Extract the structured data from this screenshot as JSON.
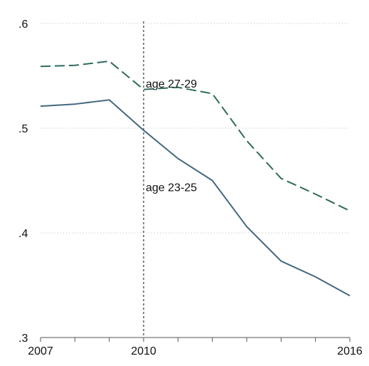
{
  "chart_data": {
    "type": "line",
    "title": "",
    "xlabel": "",
    "ylabel": "",
    "x": [
      2007,
      2008,
      2009,
      2010,
      2011,
      2012,
      2013,
      2014,
      2015,
      2016
    ],
    "xlim": [
      2007,
      2016
    ],
    "ylim": [
      0.3,
      0.6
    ],
    "x_tick_values": [
      2007,
      2010,
      2016
    ],
    "x_tick_labels": [
      "2007",
      "2010",
      "2016"
    ],
    "x_minor_ticks": [
      2008,
      2009,
      2011,
      2012,
      2013,
      2014,
      2015
    ],
    "y_tick_values": [
      0.3,
      0.4,
      0.5,
      0.6
    ],
    "y_tick_labels": [
      ".3",
      ".4",
      ".5",
      ".6"
    ],
    "grid": "horizontal dotted",
    "reference_line": {
      "x": 2010,
      "style": "dashed",
      "color": "#333333"
    },
    "series": [
      {
        "values": [
          0.559,
          0.56,
          0.564,
          0.537,
          0.539,
          0.533,
          0.488,
          0.452,
          0.437,
          0.421
        ],
        "color": "#2f6b5f",
        "dash": "dashed"
      },
      {
        "values": [
          0.521,
          0.523,
          0.527,
          0.498,
          0.471,
          0.45,
          0.406,
          0.373,
          0.358,
          0.34
        ],
        "color": "#44687e",
        "dash": "solid"
      }
    ],
    "annotations": [
      {
        "text": "age 27-29",
        "x": 2010,
        "y": 0.543,
        "series": 0
      },
      {
        "text": "age 23-25",
        "x": 2010,
        "y": 0.444,
        "series": 1
      }
    ]
  }
}
